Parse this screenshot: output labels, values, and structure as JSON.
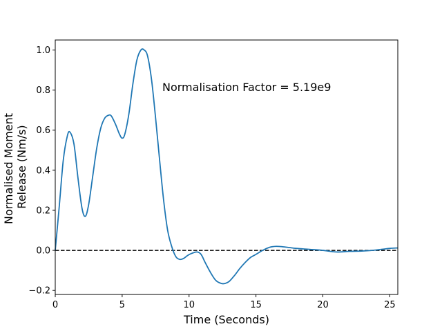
{
  "chart_data": {
    "type": "line",
    "xlabel": "Time (Seconds)",
    "ylabel_lines": [
      "Normalised Moment",
      "Release (Nm/s)"
    ],
    "annotation": "Normalisation Factor = 5.19e9",
    "xlim": [
      0,
      25.6
    ],
    "ylim": [
      -0.22,
      1.05
    ],
    "xticks": [
      0,
      5,
      10,
      15,
      20,
      25
    ],
    "yticks": [
      -0.2,
      0.0,
      0.2,
      0.4,
      0.6,
      0.8,
      1.0
    ],
    "xtick_labels": [
      "0",
      "5",
      "10",
      "15",
      "20",
      "25"
    ],
    "ytick_labels": [
      "−0.2",
      "0.0",
      "0.2",
      "0.4",
      "0.6",
      "0.8",
      "1.0"
    ],
    "grid": false,
    "reference_line": {
      "y": 0,
      "style": "dashed",
      "color": "#000000"
    },
    "series": [
      {
        "color": "#1f77b4",
        "x": [
          0,
          0.3,
          0.6,
          0.9,
          1.1,
          1.4,
          1.7,
          2.0,
          2.25,
          2.5,
          2.8,
          3.1,
          3.4,
          3.7,
          4.0,
          4.2,
          4.5,
          4.8,
          5.0,
          5.2,
          5.5,
          5.8,
          6.1,
          6.4,
          6.65,
          6.9,
          7.2,
          7.5,
          7.8,
          8.1,
          8.4,
          8.7,
          9.0,
          9.3,
          9.6,
          9.9,
          10.2,
          10.6,
          10.9,
          11.2,
          11.6,
          12.0,
          12.4,
          12.7,
          13.0,
          13.4,
          13.8,
          14.2,
          14.6,
          15.0,
          15.5,
          16.0,
          16.5,
          17.0,
          17.5,
          18.0,
          19.0,
          20.0,
          21.0,
          22.0,
          23.0,
          24.0,
          25.0,
          25.6
        ],
        "y": [
          0.0,
          0.22,
          0.45,
          0.57,
          0.59,
          0.53,
          0.36,
          0.21,
          0.17,
          0.23,
          0.37,
          0.51,
          0.61,
          0.66,
          0.675,
          0.67,
          0.63,
          0.58,
          0.56,
          0.58,
          0.68,
          0.83,
          0.95,
          1.0,
          1.0,
          0.97,
          0.85,
          0.66,
          0.45,
          0.25,
          0.1,
          0.02,
          -0.03,
          -0.045,
          -0.04,
          -0.025,
          -0.015,
          -0.008,
          -0.02,
          -0.06,
          -0.11,
          -0.15,
          -0.165,
          -0.165,
          -0.155,
          -0.125,
          -0.09,
          -0.06,
          -0.035,
          -0.02,
          0.0,
          0.015,
          0.02,
          0.018,
          0.014,
          0.01,
          0.005,
          0.0,
          -0.008,
          -0.005,
          -0.003,
          0.002,
          0.01,
          0.012
        ]
      }
    ]
  }
}
